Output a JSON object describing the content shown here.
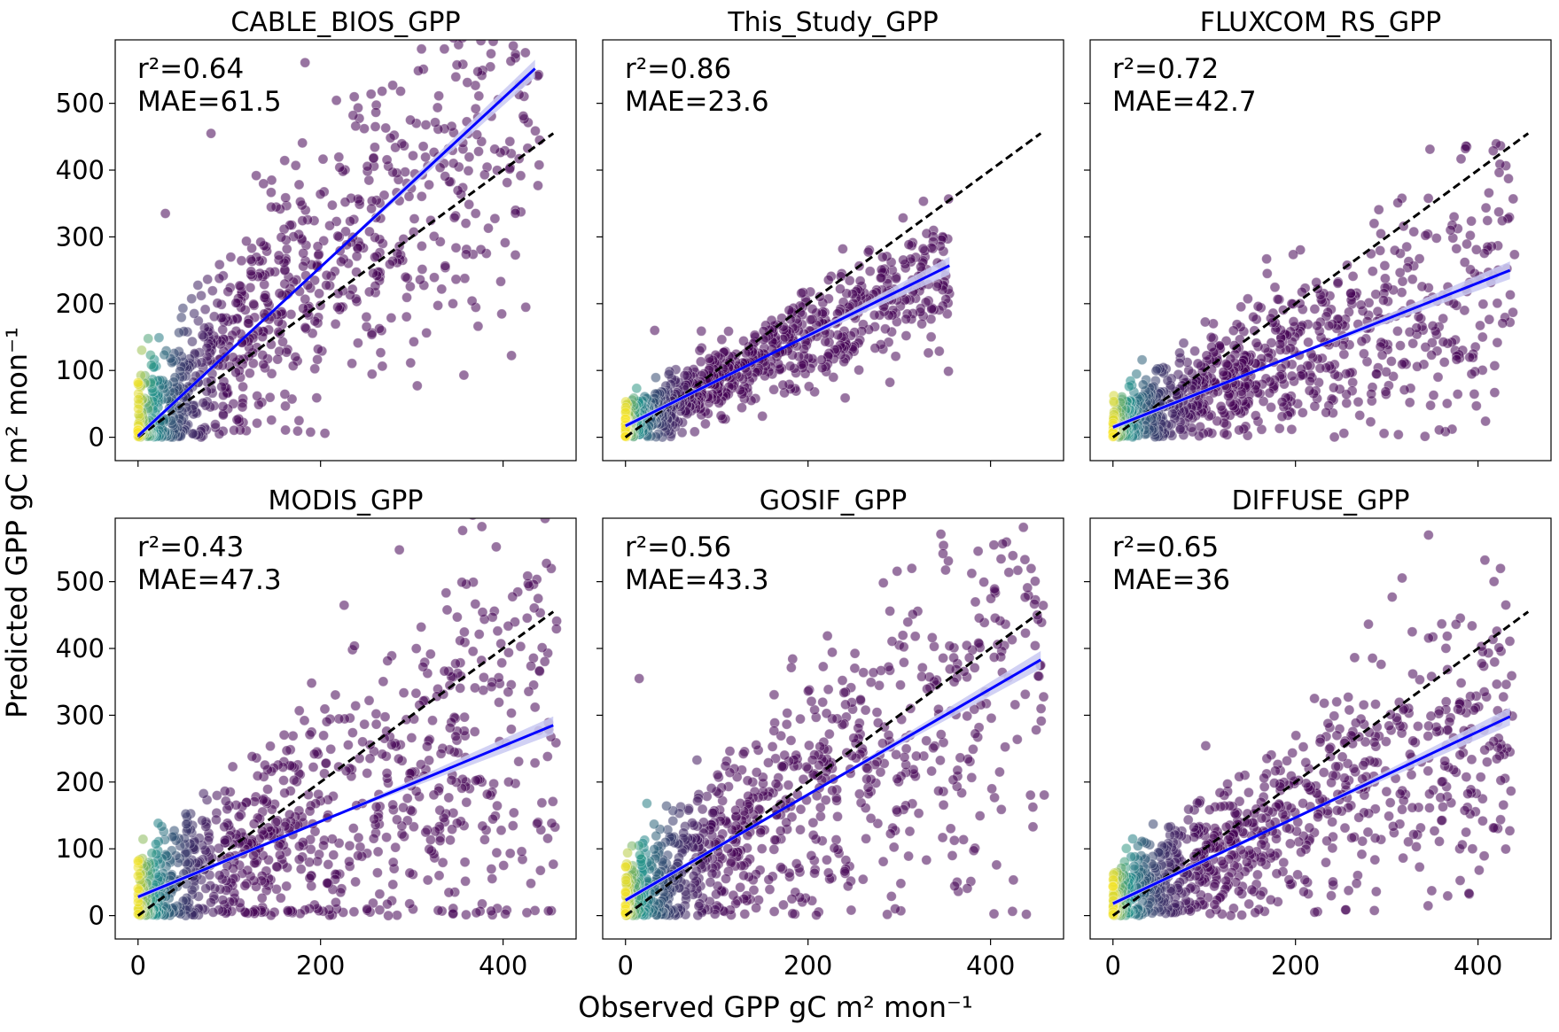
{
  "figure": {
    "xlabel": "Observed GPP gC m² mon⁻¹",
    "ylabel": "Predicted GPP gC m² mon⁻¹",
    "colors": {
      "fit_line": "#0000ff",
      "fit_band": "#c9c9f2",
      "one_to_one": "#000000",
      "scatter_low": "#440154",
      "scatter_mid": "#21918c",
      "scatter_high": "#fde725"
    }
  },
  "chart_data": [
    {
      "type": "scatter",
      "title": "CABLE_BIOS_GPP",
      "stats": {
        "r2": "r²=0.64",
        "mae": "MAE=61.5"
      },
      "xlim": [
        -25,
        480
      ],
      "ylim": [
        -35,
        595
      ],
      "xticks": [
        0,
        200,
        400
      ],
      "yticks": [
        0,
        100,
        200,
        300,
        400,
        500
      ],
      "show_xticklabels": false,
      "show_yticklabels": true,
      "one_to_one": [
        [
          0,
          0
        ],
        [
          455,
          455
        ]
      ],
      "fit": {
        "x": [
          0,
          435
        ],
        "y": [
          2,
          552
        ]
      },
      "cloud": {
        "x_max": 440,
        "slope": 1.26,
        "intercept": 2,
        "noise": 0.3,
        "noise_abs": 45
      },
      "points": [
        [
          440,
          445
        ],
        [
          370,
          335
        ],
        [
          345,
          200
        ],
        [
          80,
          455
        ],
        [
          260,
          465
        ],
        [
          305,
          470
        ],
        [
          30,
          335
        ]
      ]
    },
    {
      "type": "scatter",
      "title": "This_Study_GPP",
      "stats": {
        "r2": "r²=0.86",
        "mae": "MAE=23.6"
      },
      "xlim": [
        -25,
        480
      ],
      "ylim": [
        -35,
        595
      ],
      "xticks": [
        0,
        200,
        400
      ],
      "yticks": [
        0,
        100,
        200,
        300,
        400,
        500
      ],
      "show_xticklabels": false,
      "show_yticklabels": false,
      "one_to_one": [
        [
          0,
          0
        ],
        [
          455,
          455
        ]
      ],
      "fit": {
        "x": [
          0,
          355
        ],
        "y": [
          17,
          257
        ]
      },
      "cloud": {
        "x_max": 355,
        "slope": 0.675,
        "intercept": 17,
        "noise": 0.12,
        "noise_abs": 15
      },
      "points": [
        [
          355,
          215
        ],
        [
          32,
          160
        ]
      ]
    },
    {
      "type": "scatter",
      "title": "FLUXCOM_RS_GPP",
      "stats": {
        "r2": "r²=0.72",
        "mae": "MAE=42.7"
      },
      "xlim": [
        -25,
        480
      ],
      "ylim": [
        -35,
        595
      ],
      "xticks": [
        0,
        200,
        400
      ],
      "yticks": [
        0,
        100,
        200,
        300,
        400,
        500
      ],
      "show_xticklabels": false,
      "show_yticklabels": false,
      "one_to_one": [
        [
          0,
          0
        ],
        [
          455,
          455
        ]
      ],
      "fit": {
        "x": [
          0,
          435
        ],
        "y": [
          15,
          250
        ]
      },
      "cloud": {
        "x_max": 440,
        "slope": 0.54,
        "intercept": 15,
        "noise": 0.2,
        "noise_abs": 22
      },
      "points": [
        [
          435,
          172
        ],
        [
          405,
          150
        ],
        [
          375,
          130
        ],
        [
          110,
          170
        ]
      ]
    },
    {
      "type": "scatter",
      "title": "MODIS_GPP",
      "stats": {
        "r2": "r²=0.43",
        "mae": "MAE=47.3"
      },
      "xlim": [
        -25,
        480
      ],
      "ylim": [
        -35,
        595
      ],
      "xticks": [
        0,
        200,
        400
      ],
      "yticks": [
        0,
        100,
        200,
        300,
        400,
        500
      ],
      "show_xticklabels": true,
      "show_yticklabels": true,
      "one_to_one": [
        [
          0,
          0
        ],
        [
          455,
          455
        ]
      ],
      "fit": {
        "x": [
          0,
          455
        ],
        "y": [
          28,
          285
        ]
      },
      "cloud": {
        "x_max": 460,
        "slope": 0.565,
        "intercept": 28,
        "noise": 0.35,
        "noise_abs": 38
      },
      "points": [
        [
          455,
          77
        ],
        [
          435,
          312
        ],
        [
          235,
          398
        ],
        [
          330,
          60
        ]
      ]
    },
    {
      "type": "scatter",
      "title": "GOSIF_GPP",
      "stats": {
        "r2": "r²=0.56",
        "mae": "MAE=43.3"
      },
      "xlim": [
        -25,
        480
      ],
      "ylim": [
        -35,
        595
      ],
      "xticks": [
        0,
        200,
        400
      ],
      "yticks": [
        0,
        100,
        200,
        300,
        400,
        500
      ],
      "show_xticklabels": true,
      "show_yticklabels": false,
      "one_to_one": [
        [
          0,
          0
        ],
        [
          455,
          455
        ]
      ],
      "fit": {
        "x": [
          0,
          455
        ],
        "y": [
          23,
          383
        ]
      },
      "cloud": {
        "x_max": 460,
        "slope": 0.79,
        "intercept": 23,
        "noise": 0.3,
        "noise_abs": 35
      },
      "points": [
        [
          455,
          375
        ],
        [
          15,
          355
        ],
        [
          410,
          215
        ],
        [
          300,
          405
        ]
      ]
    },
    {
      "type": "scatter",
      "title": "DIFFUSE_GPP",
      "stats": {
        "r2": "r²=0.65",
        "mae": "MAE=36"
      },
      "xlim": [
        -25,
        480
      ],
      "ylim": [
        -35,
        595
      ],
      "xticks": [
        0,
        200,
        400
      ],
      "yticks": [
        0,
        100,
        200,
        300,
        400,
        500
      ],
      "show_xticklabels": true,
      "show_yticklabels": false,
      "one_to_one": [
        [
          0,
          0
        ],
        [
          455,
          455
        ]
      ],
      "fit": {
        "x": [
          0,
          435
        ],
        "y": [
          18,
          298
        ]
      },
      "cloud": {
        "x_max": 440,
        "slope": 0.64,
        "intercept": 18,
        "noise": 0.22,
        "noise_abs": 28
      },
      "points": [
        [
          435,
          245
        ],
        [
          410,
          230
        ],
        [
          405,
          175
        ],
        [
          380,
          100
        ]
      ]
    }
  ]
}
